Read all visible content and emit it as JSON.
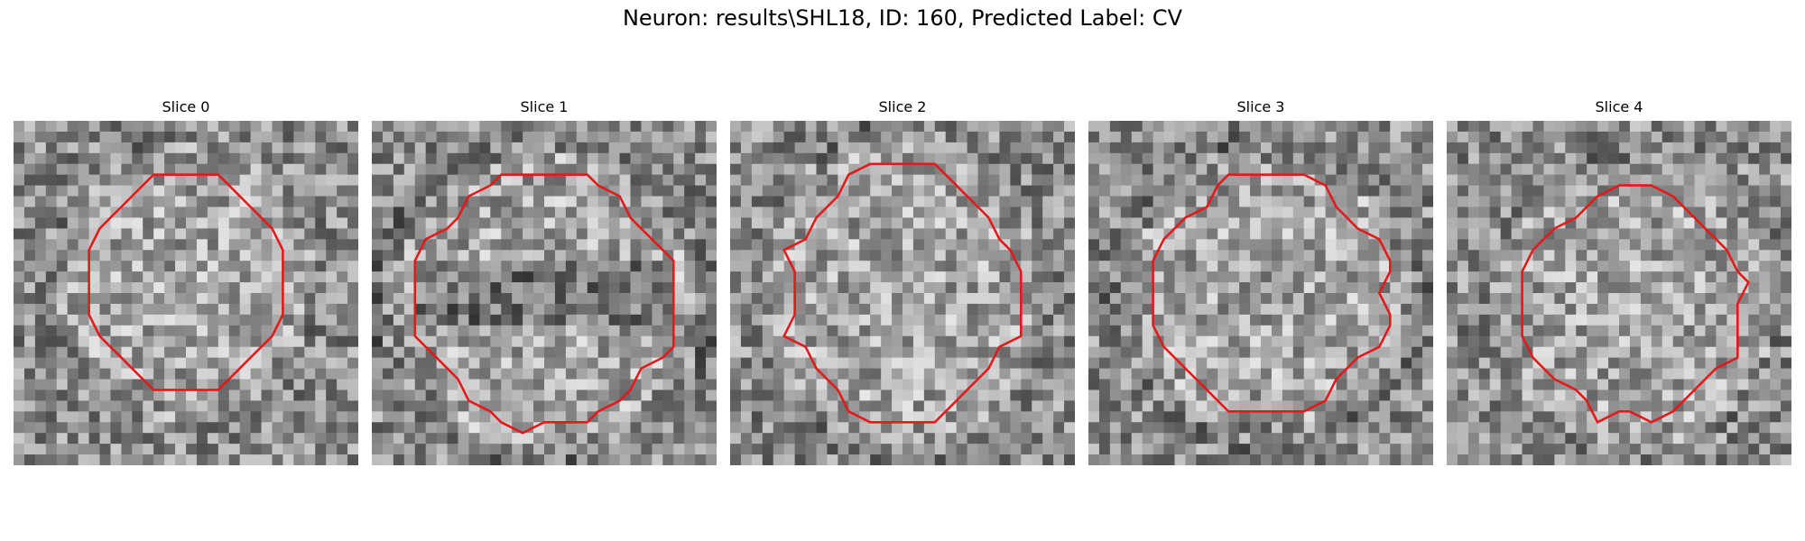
{
  "figure": {
    "title": "Neuron: results\\SHL18, ID: 160, Predicted Label: CV"
  },
  "panels": [
    {
      "title": "Slice 0"
    },
    {
      "title": "Slice 1"
    },
    {
      "title": "Slice 2"
    },
    {
      "title": "Slice 3"
    },
    {
      "title": "Slice 4"
    }
  ],
  "style": {
    "contour_color": "#e31a1c",
    "colormap": "grayscale"
  }
}
